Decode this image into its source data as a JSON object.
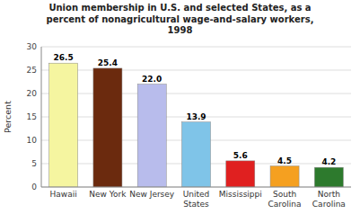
{
  "chart_data": {
    "type": "bar",
    "title": "Union membership in U.S. and selected States, as a\npercent of nonagricultural wage-and-salary workers,\n1998",
    "categories": [
      "Hawaii",
      "New York",
      "New Jersey",
      "United\nStates",
      "Mississippi",
      "South\nCarolina",
      "North\nCarolina"
    ],
    "values": [
      26.5,
      25.4,
      22.0,
      13.9,
      5.6,
      4.5,
      4.2
    ],
    "value_labels": [
      "26.5",
      "25.4",
      "22.0",
      "13.9",
      "5.6",
      "4.5",
      "4.2"
    ],
    "colors": [
      "#f5f5a0",
      "#6b2a0e",
      "#b8bcec",
      "#7fc4e8",
      "#e02020",
      "#f5a020",
      "#2d7a2d"
    ],
    "ylabel": "Percent",
    "ylim": [
      0,
      30
    ],
    "yticks": [
      0,
      5,
      10,
      15,
      20,
      25,
      30
    ],
    "grid": true,
    "data_labels": true
  }
}
